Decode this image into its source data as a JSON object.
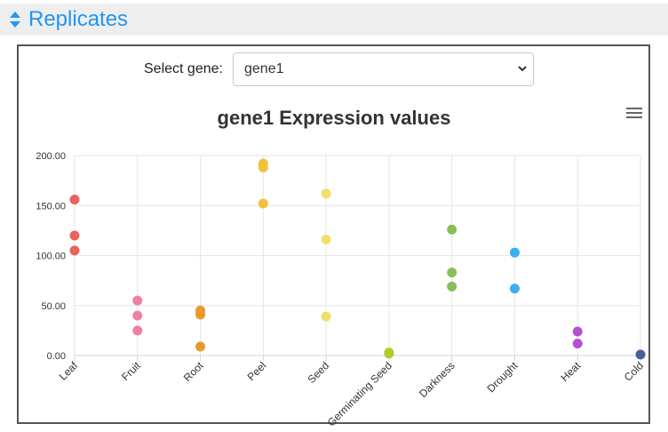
{
  "header": {
    "title": "Replicates",
    "accent": "#2196f3"
  },
  "selector": {
    "label": "Select gene:",
    "value": "gene1"
  },
  "chart_data": {
    "type": "scatter",
    "title": "gene1 Expression values",
    "categories": [
      "Leaf",
      "Fruit",
      "Root",
      "Peel",
      "Seed",
      "Germinating Seed",
      "Darkness",
      "Drought",
      "Heat",
      "Cold"
    ],
    "y_ticks": [
      "0.00",
      "50.00",
      "100.00",
      "150.00",
      "200.00"
    ],
    "ylim": [
      0,
      200
    ],
    "grid": true,
    "series": [
      {
        "category": "Leaf",
        "color": "#e8645a",
        "values": [
          156,
          120,
          105
        ]
      },
      {
        "category": "Fruit",
        "color": "#f07fa6",
        "values": [
          55,
          40,
          25
        ]
      },
      {
        "category": "Root",
        "color": "#e89a2a",
        "values": [
          45,
          41,
          9
        ]
      },
      {
        "category": "Peel",
        "color": "#f0c23c",
        "values": [
          192,
          188,
          152
        ]
      },
      {
        "category": "Seed",
        "color": "#f0e06a",
        "values": [
          162,
          116,
          39
        ]
      },
      {
        "category": "Germinating Seed",
        "color": "#b8c82a",
        "values": [
          3,
          2
        ]
      },
      {
        "category": "Darkness",
        "color": "#88c057",
        "values": [
          126,
          83,
          69
        ]
      },
      {
        "category": "Drought",
        "color": "#3ab0f0",
        "values": [
          103,
          67
        ]
      },
      {
        "category": "Heat",
        "color": "#b84fcf",
        "values": [
          24,
          12
        ]
      },
      {
        "category": "Cold",
        "color": "#4a5fa0",
        "values": [
          1
        ]
      }
    ]
  }
}
